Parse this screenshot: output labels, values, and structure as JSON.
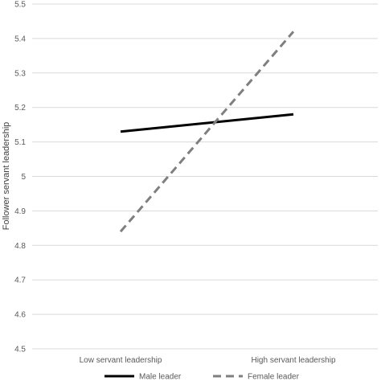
{
  "chart_data": {
    "type": "line",
    "title": "",
    "xlabel": "",
    "ylabel": "Follower servant leadership",
    "categories": [
      "Low servant leadership",
      "High servant leadership"
    ],
    "ylim": [
      4.5,
      5.5
    ],
    "yticks": [
      "4.5",
      "4.6",
      "4.7",
      "4.8",
      "4.9",
      "5",
      "5.1",
      "5.2",
      "5.3",
      "5.4",
      "5.5"
    ],
    "grid": "horizontal",
    "legend": "bottom",
    "series": [
      {
        "name": "Male leader",
        "values": [
          5.13,
          5.18
        ],
        "color": "#000000",
        "dash": "solid"
      },
      {
        "name": "Female leader",
        "values": [
          4.84,
          5.42
        ],
        "color": "#7f7f7f",
        "dash": "dashed"
      }
    ]
  }
}
